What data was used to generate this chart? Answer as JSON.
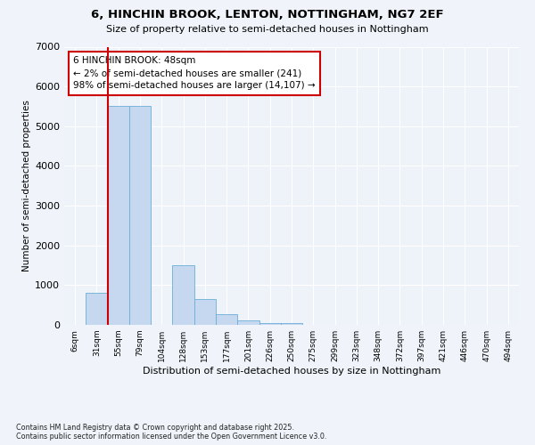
{
  "title1": "6, HINCHIN BROOK, LENTON, NOTTINGHAM, NG7 2EF",
  "title2": "Size of property relative to semi-detached houses in Nottingham",
  "xlabel": "Distribution of semi-detached houses by size in Nottingham",
  "ylabel": "Number of semi-detached properties",
  "footnote": "Contains HM Land Registry data © Crown copyright and database right 2025.\nContains public sector information licensed under the Open Government Licence v3.0.",
  "bin_labels": [
    "6sqm",
    "31sqm",
    "55sqm",
    "79sqm",
    "104sqm",
    "128sqm",
    "153sqm",
    "177sqm",
    "201sqm",
    "226sqm",
    "250sqm",
    "275sqm",
    "299sqm",
    "323sqm",
    "348sqm",
    "372sqm",
    "397sqm",
    "421sqm",
    "446sqm",
    "470sqm",
    "494sqm"
  ],
  "bar_values": [
    0,
    800,
    5500,
    5500,
    0,
    1500,
    650,
    270,
    120,
    50,
    50,
    0,
    0,
    0,
    0,
    0,
    0,
    0,
    0,
    0,
    0
  ],
  "subject_label": "6 HINCHIN BROOK: 48sqm",
  "pct_smaller": 2,
  "count_smaller": 241,
  "pct_larger": 98,
  "count_larger": "14,107",
  "vline_x": 1.5,
  "bar_color": "#c5d8f0",
  "bar_edge_color": "#6baed6",
  "vline_color": "#cc0000",
  "bg_color": "#f0f4fa",
  "plot_bg_color": "#eef2f9",
  "annotation_box_color": "#cc0000",
  "ylim": [
    0,
    7000
  ],
  "yticks": [
    0,
    1000,
    2000,
    3000,
    4000,
    5000,
    6000,
    7000
  ],
  "grid_color": "#ffffff"
}
